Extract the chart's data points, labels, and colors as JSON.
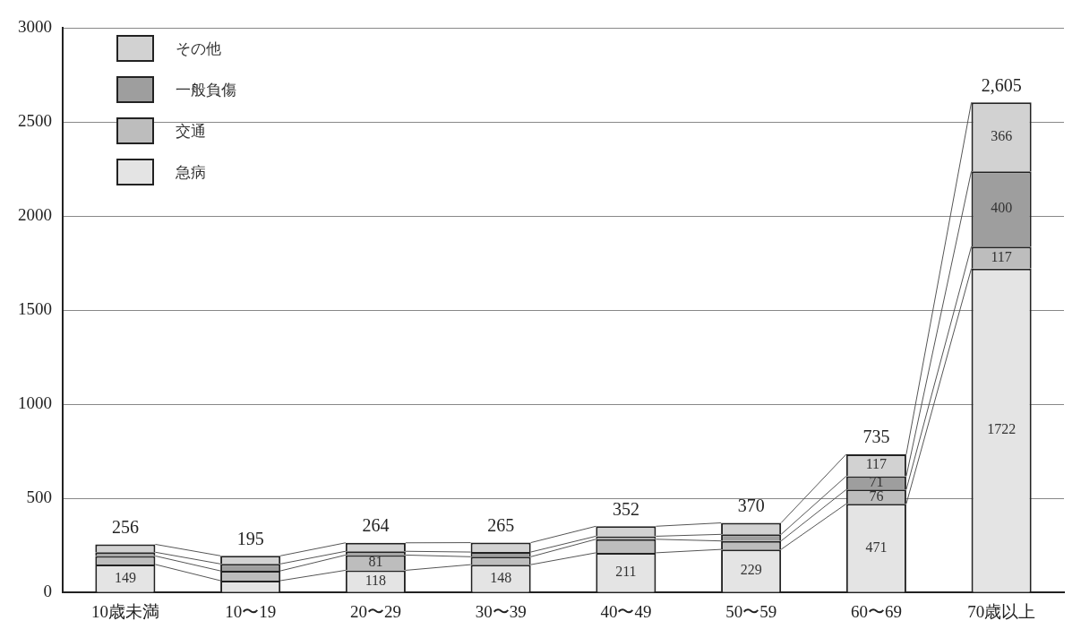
{
  "chart_data": {
    "type": "bar",
    "stacked": true,
    "categories": [
      "10歳未満",
      "10〜19",
      "20〜29",
      "30〜39",
      "40〜49",
      "50〜59",
      "60〜69",
      "70歳以上"
    ],
    "series": [
      {
        "name": "急病",
        "color": "#e4e4e4",
        "values": [
          149,
          63,
          118,
          148,
          211,
          229,
          471,
          1722
        ],
        "value_labels": [
          "149",
          null,
          "118",
          "148",
          "211",
          "229",
          "471",
          "1722"
        ]
      },
      {
        "name": "交通",
        "color": "#bdbdbd",
        "values": [
          45,
          52,
          81,
          42,
          72,
          45,
          76,
          117
        ],
        "value_labels": [
          null,
          null,
          "81",
          null,
          null,
          null,
          "76",
          "117"
        ]
      },
      {
        "name": "一般負傷",
        "color": "#9e9e9e",
        "values": [
          20,
          37,
          20,
          25,
          16,
          35,
          71,
          400
        ],
        "value_labels": [
          null,
          null,
          null,
          null,
          null,
          null,
          "71",
          "400"
        ]
      },
      {
        "name": "その他",
        "color": "#d2d2d2",
        "values": [
          42,
          43,
          45,
          50,
          53,
          61,
          117,
          366
        ],
        "value_labels": [
          null,
          null,
          null,
          null,
          null,
          null,
          "117",
          "366"
        ]
      }
    ],
    "ylim": [
      0,
      3000
    ],
    "yticks": [
      0,
      500,
      1000,
      1500,
      2000,
      2500,
      3000
    ],
    "grid": "y",
    "legend": "top left",
    "totals": [
      "256",
      "195",
      "264",
      "265",
      "352",
      "370",
      "735",
      "2,605"
    ]
  }
}
